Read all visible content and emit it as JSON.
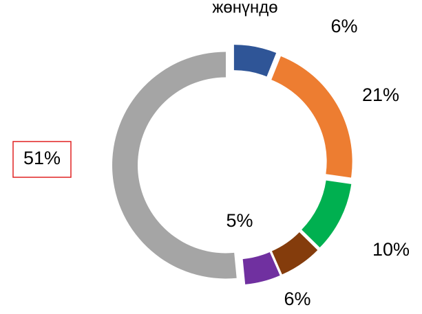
{
  "chart_data": {
    "type": "donut",
    "title": "жөнүндө",
    "values": [
      6,
      21,
      10,
      6,
      5,
      51
    ],
    "value_labels": [
      "6%",
      "21%",
      "10%",
      "6%",
      "5%",
      "51%"
    ],
    "colors": [
      "#2f5597",
      "#ed7d31",
      "#00b050",
      "#843c0c",
      "#7030a0",
      "#a5a5a5"
    ]
  }
}
